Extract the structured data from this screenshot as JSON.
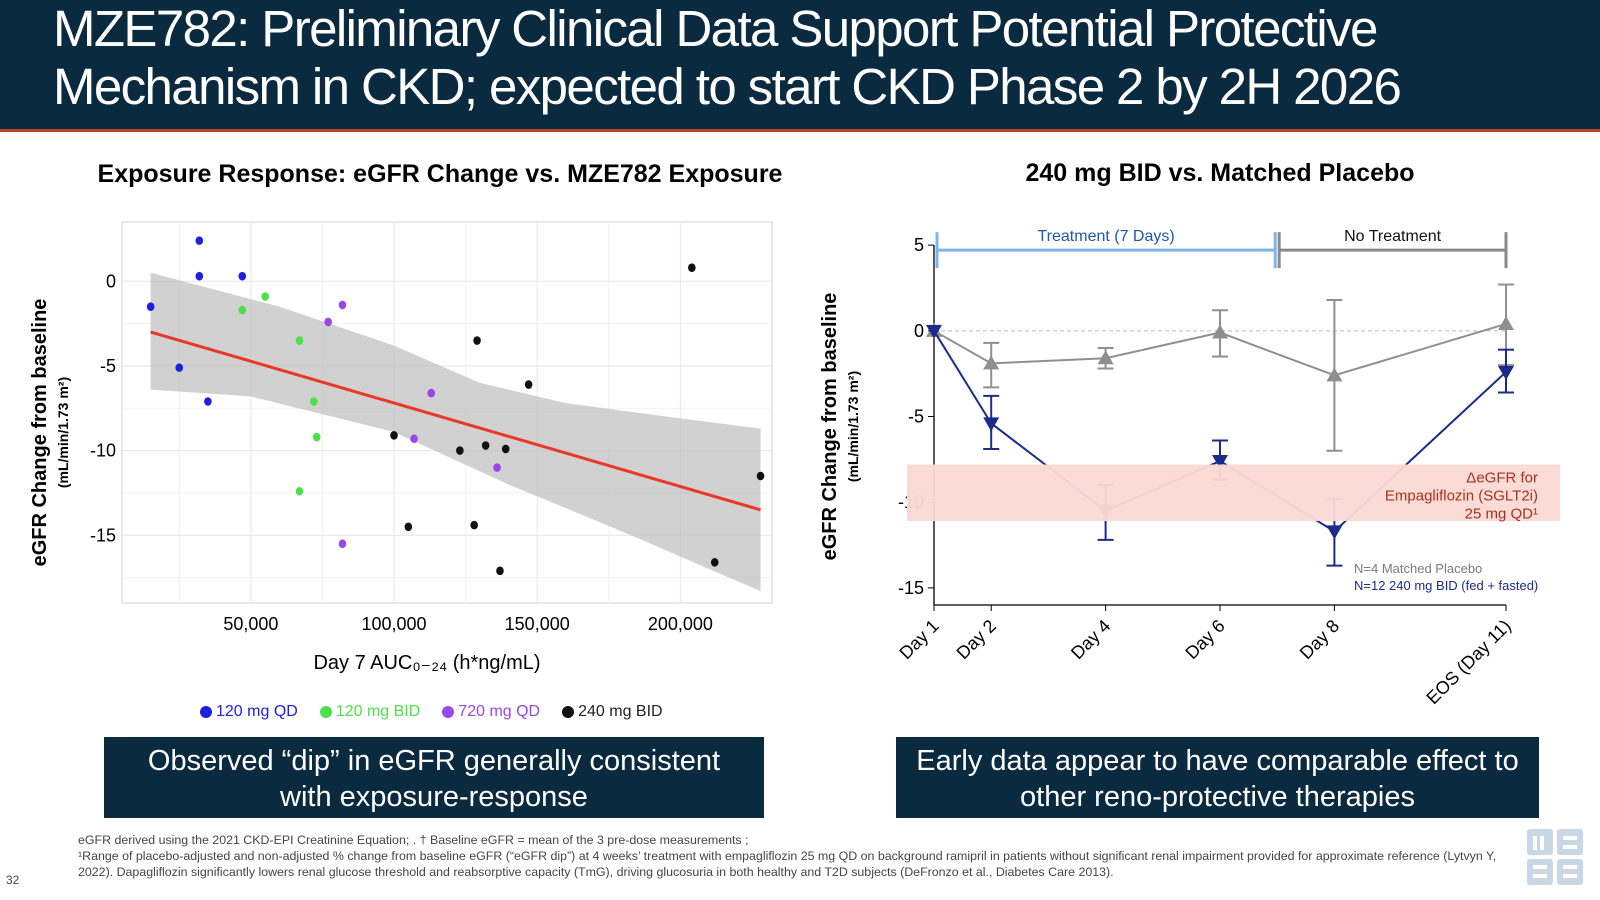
{
  "slide": {
    "title_line1": "MZE782: Preliminary Clinical Data Support Potential Protective",
    "title_line2": "Mechanism in CKD; expected to start CKD Phase 2 by 2H 2026",
    "page_number": "32",
    "callout_left": [
      "Observed “dip” in eGFR generally consistent",
      "with exposure-response"
    ],
    "callout_right": [
      "Early data appear to have comparable effect to",
      "other reno-protective therapies"
    ],
    "footnotes": [
      "eGFR derived using the 2021 CKD-EPI Creatinine Equation; . † Baseline eGFR = mean of the 3 pre-dose measurements ;",
      "¹Range of placebo-adjusted and non-adjusted % change from baseline eGFR  (“eGFR dip”) at 4 weeks’ treatment with empagliflozin 25 mg QD on background ramipril in patients without significant renal impairment provided for approximate reference (Lytvyn Y, 2022).  Dapagliflozin significantly lowers renal glucose threshold and reabsorptive capacity (TmG), driving glucosuria in both healthy and T2D subjects (DeFronzo et al., Diabetes Care 2013)."
    ],
    "colors": {
      "header_bg": "#0a2a3f",
      "accent": "#b5462b"
    }
  },
  "chart_data": [
    {
      "type": "scatter",
      "title": "Exposure Response: eGFR Change vs. MZE782 Exposure",
      "xlabel": "Day 7 AUC₀₋₂₄ (h*ng/mL)",
      "ylabel": "eGFR Change from baseline",
      "ylabel_units": "(mL/min/1.73 m²)",
      "xticks": [
        50000,
        100000,
        150000,
        200000
      ],
      "xtick_labels": [
        "50,000",
        "100,000",
        "150,000",
        "200,000"
      ],
      "yticks": [
        0,
        -5,
        -10,
        -15
      ],
      "ytick_labels": [
        "0",
        "-5",
        "-10",
        "-15"
      ],
      "xlim": [
        5000,
        232000
      ],
      "ylim": [
        -19,
        3.5
      ],
      "grid": true,
      "legend_position": "bottom",
      "series": [
        {
          "name": "120 mg QD",
          "color": "#1f1fe0",
          "points": [
            [
              15000,
              -1.5
            ],
            [
              32000,
              2.4
            ],
            [
              32000,
              0.3
            ],
            [
              25000,
              -5.1
            ],
            [
              35000,
              -7.1
            ],
            [
              47000,
              0.3
            ]
          ]
        },
        {
          "name": "120 mg BID",
          "color": "#4ce14a",
          "points": [
            [
              55000,
              -0.9
            ],
            [
              47000,
              -1.7
            ],
            [
              67000,
              -3.5
            ],
            [
              72000,
              -7.1
            ],
            [
              73000,
              -9.2
            ],
            [
              67000,
              -12.4
            ]
          ]
        },
        {
          "name": "720 mg QD",
          "color": "#9a47e8",
          "points": [
            [
              82000,
              -1.4
            ],
            [
              77000,
              -2.4
            ],
            [
              113000,
              -6.6
            ],
            [
              107000,
              -9.3
            ],
            [
              136000,
              -11.0
            ],
            [
              82000,
              -15.5
            ]
          ]
        },
        {
          "name": "240 mg BID",
          "color": "#111111",
          "points": [
            [
              204000,
              0.8
            ],
            [
              129000,
              -3.5
            ],
            [
              147000,
              -6.1
            ],
            [
              100000,
              -9.1
            ],
            [
              123000,
              -10.0
            ],
            [
              132000,
              -9.7
            ],
            [
              139000,
              -9.9
            ],
            [
              105000,
              -14.5
            ],
            [
              128000,
              -14.4
            ],
            [
              137000,
              -17.1
            ],
            [
              212000,
              -16.6
            ],
            [
              228000,
              -11.5
            ]
          ]
        }
      ],
      "regression": {
        "color": "#e8382a",
        "from": [
          15000,
          -3.0
        ],
        "to": [
          228000,
          -13.5
        ]
      },
      "confidence_band": {
        "upper": [
          [
            15000,
            0.5
          ],
          [
            60000,
            -1.5
          ],
          [
            100000,
            -3.8
          ],
          [
            130000,
            -6.0
          ],
          [
            160000,
            -7.2
          ],
          [
            200000,
            -8.1
          ],
          [
            228000,
            -8.7
          ]
        ],
        "lower": [
          [
            15000,
            -6.4
          ],
          [
            50000,
            -6.8
          ],
          [
            100000,
            -8.9
          ],
          [
            140000,
            -12.0
          ],
          [
            180000,
            -14.8
          ],
          [
            228000,
            -18.3
          ]
        ]
      }
    },
    {
      "type": "line",
      "title": "240 mg BID vs. Matched Placebo",
      "ylabel": "eGFR Change from baseline",
      "ylabel_units": "(mL/min/1.73 m²)",
      "categories": [
        "Day 1",
        "Day 2",
        "Day 4",
        "Day 6",
        "Day 8",
        "EOS (Day 11)"
      ],
      "x": [
        1,
        2,
        4,
        6,
        8,
        11
      ],
      "yticks": [
        5,
        0,
        -5,
        -10,
        -15
      ],
      "ytick_labels": [
        "5",
        "0",
        "-5",
        "-10",
        "-15"
      ],
      "ylim": [
        -16,
        6
      ],
      "grid": false,
      "zero_reference_line": true,
      "periods": [
        {
          "label": "Treatment (7 Days)",
          "from": 1,
          "to": 7,
          "color": "#7fb4ea"
        },
        {
          "label": "No Treatment",
          "from": 7,
          "to": 11,
          "color": "#8a8a8a"
        }
      ],
      "series": [
        {
          "name": "N=4 Matched Placebo",
          "color": "#8f8f8f",
          "marker": "triangle-up",
          "values": [
            0.0,
            -1.9,
            -1.6,
            -0.1,
            -2.6,
            0.4
          ],
          "err_low": [
            0.0,
            -3.3,
            -2.2,
            -1.5,
            -7.0,
            -2.0
          ],
          "err_high": [
            0.0,
            -0.7,
            -1.0,
            1.2,
            1.8,
            2.7
          ]
        },
        {
          "name": "N=12 240 mg BID (fed + fasted)",
          "color": "#1c2a8c",
          "marker": "triangle-down",
          "values": [
            0.0,
            -5.4,
            -10.5,
            -7.6,
            -11.7,
            -2.4
          ],
          "err_low": [
            0.0,
            -6.9,
            -12.2,
            -8.7,
            -13.7,
            -3.6
          ],
          "err_high": [
            0.0,
            -3.8,
            -9.0,
            -6.4,
            -9.8,
            -1.1
          ]
        }
      ],
      "annotation_band": {
        "y_from": -7.8,
        "y_to": -11.1,
        "color": "#fadad4",
        "label_lines": [
          "ΔeGFR for",
          "Empagliflozin (SGLT2i)",
          "25 mg QD¹"
        ]
      },
      "legend_position": "bottom-right"
    }
  ]
}
